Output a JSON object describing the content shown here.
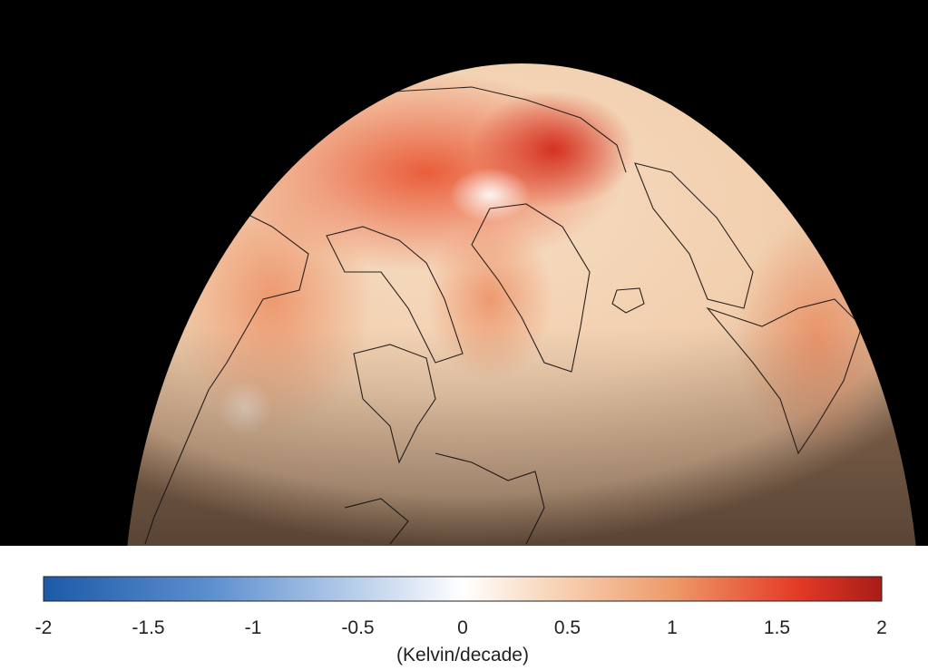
{
  "colorbar": {
    "label": "(Kelvin/decade)",
    "lim": [
      -2,
      2
    ],
    "ticks": [
      -2,
      -1.5,
      -1,
      -0.5,
      0,
      0.5,
      1,
      1.5,
      2
    ]
  }
}
